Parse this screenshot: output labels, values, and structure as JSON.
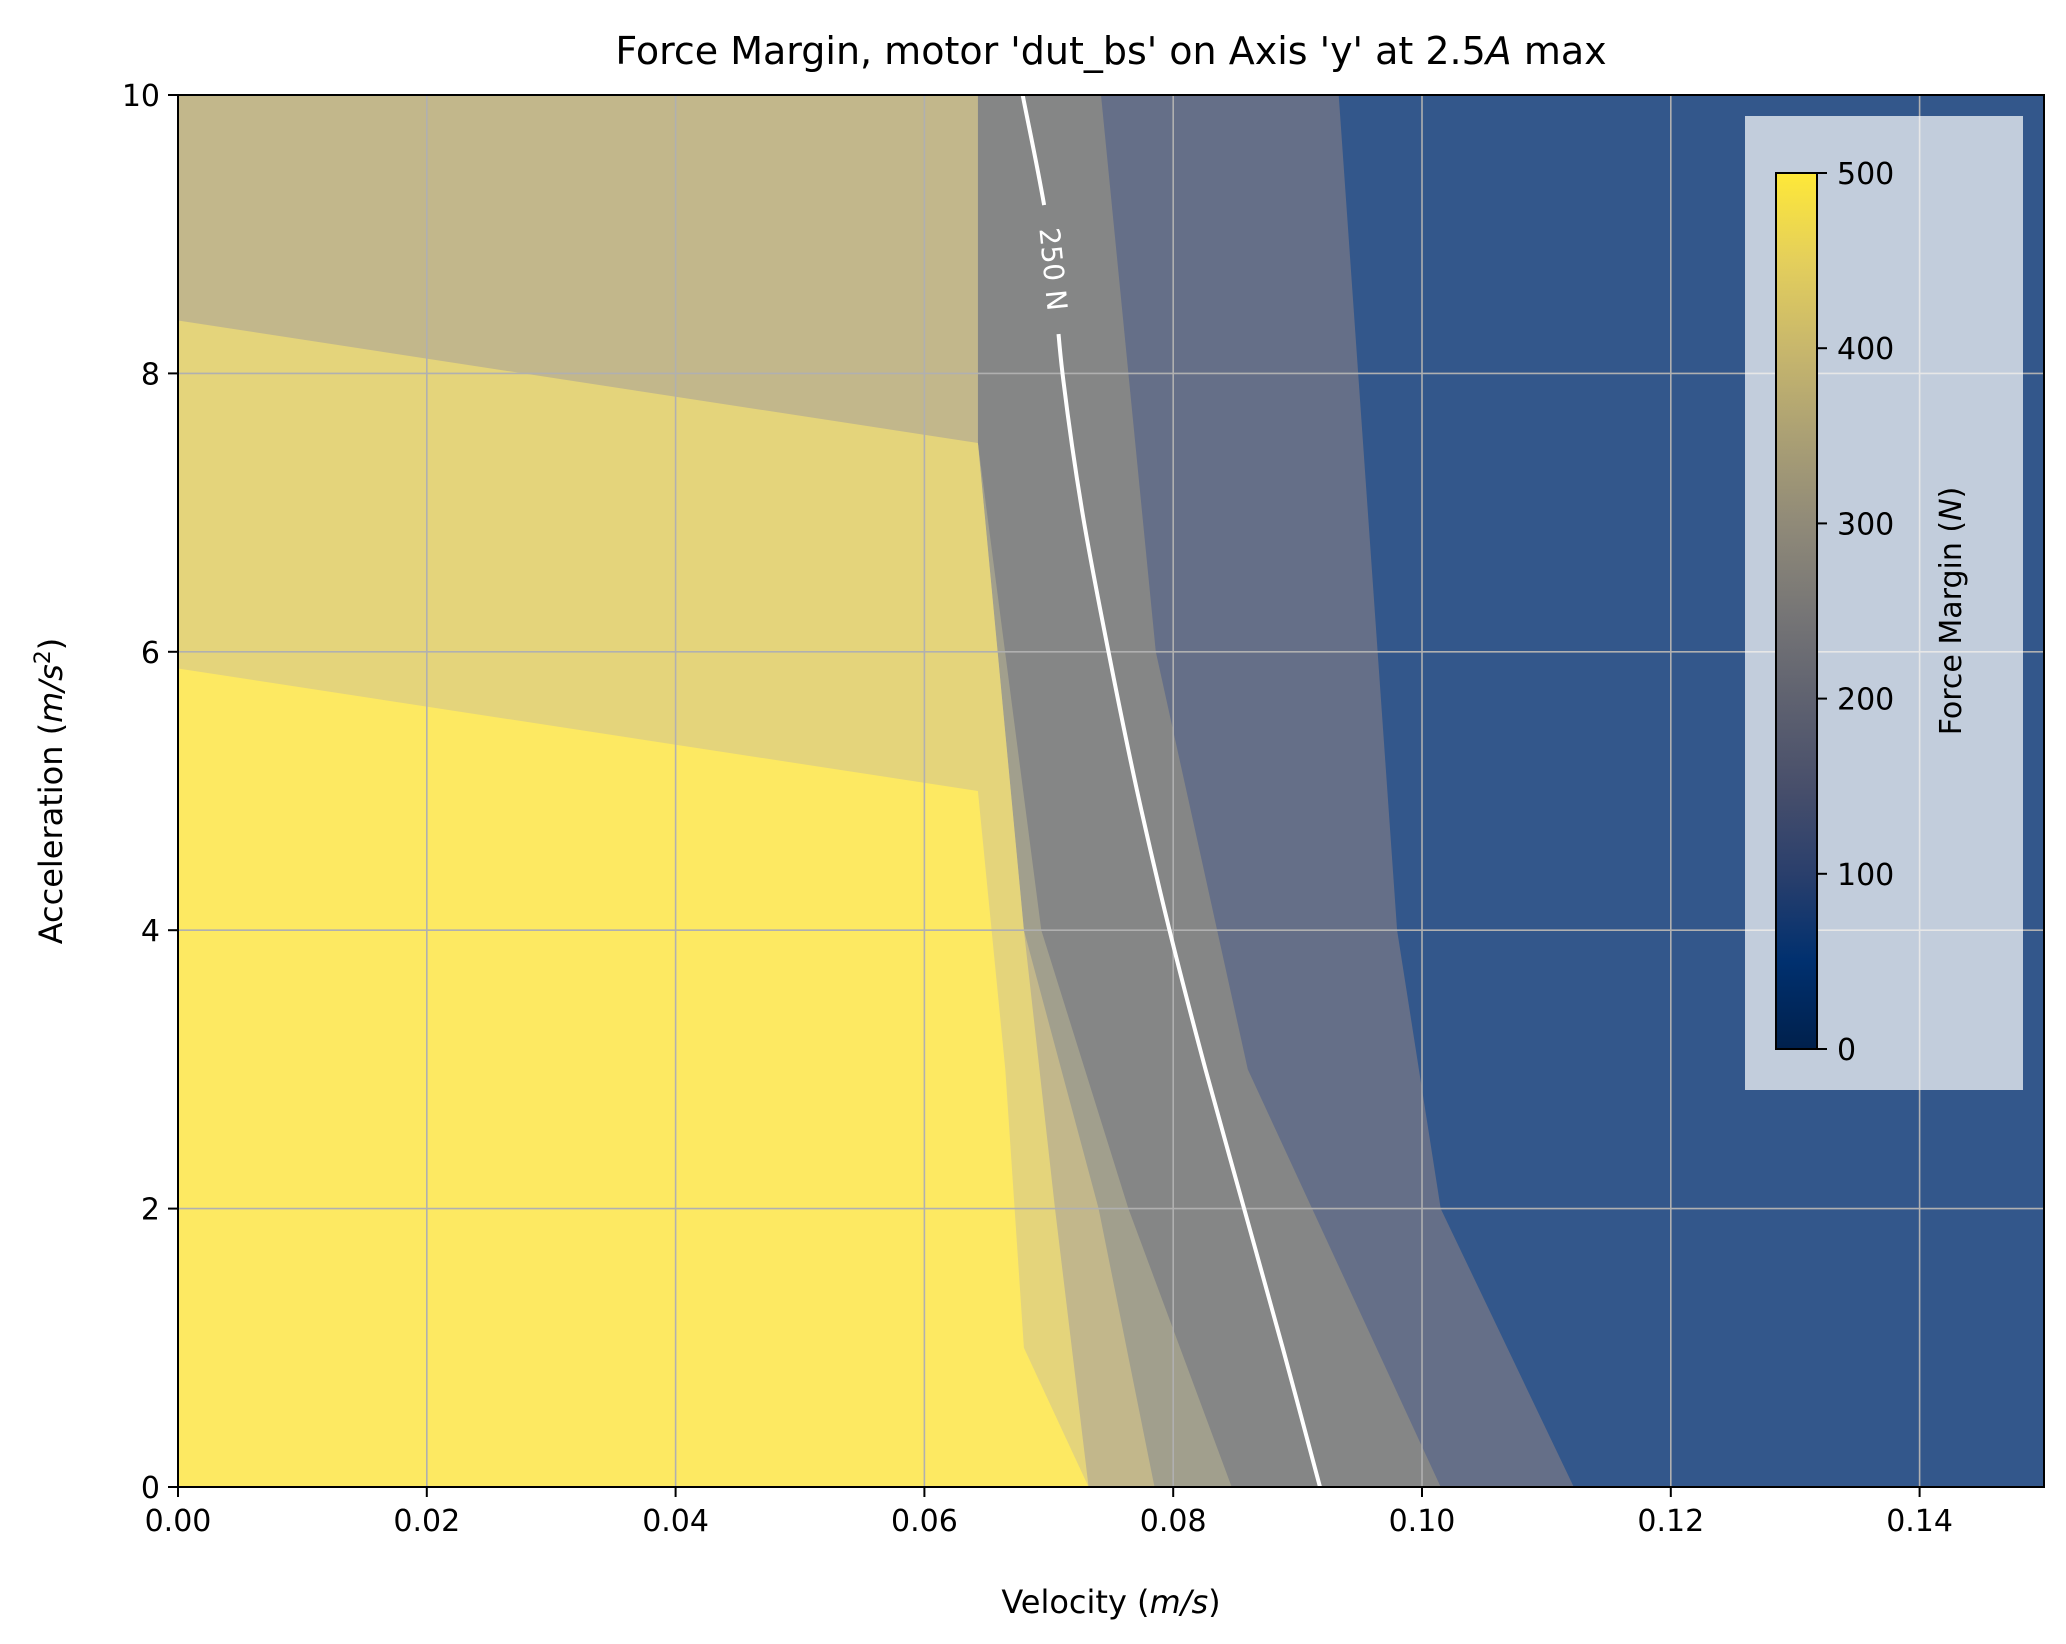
{
  "chart_data": {
    "type": "contourf",
    "title": "Force Margin, motor 'dut_bs' on Axis 'y' at 2.5A max",
    "title_parts": [
      {
        "text": "Force Margin, motor 'dut_bs' on Axis 'y' at 2.5",
        "italic": false
      },
      {
        "text": "A",
        "italic": true
      },
      {
        "text": " max",
        "italic": false
      }
    ],
    "xlabel_parts": [
      {
        "text": "Velocity (",
        "italic": false
      },
      {
        "text": "m/s",
        "italic": true
      },
      {
        "text": ")",
        "italic": false
      }
    ],
    "ylabel_parts": [
      {
        "text": "Acceleration (",
        "italic": false
      },
      {
        "text": "m/s",
        "italic": true
      },
      {
        "text": "2",
        "sup": true
      },
      {
        "text": ")",
        "italic": false
      }
    ],
    "xlim": [
      0.0,
      0.15
    ],
    "ylim": [
      0,
      10
    ],
    "xticks": [
      0.0,
      0.02,
      0.04,
      0.06,
      0.08,
      0.1,
      0.12,
      0.14
    ],
    "xtick_labels": [
      "0.00",
      "0.02",
      "0.04",
      "0.06",
      "0.08",
      "0.10",
      "0.12",
      "0.14"
    ],
    "yticks": [
      0,
      2,
      4,
      6,
      8,
      10
    ],
    "ytick_labels": [
      "0",
      "2",
      "4",
      "6",
      "8",
      "10"
    ],
    "grid": true,
    "colormap": "cividis",
    "colorbar": {
      "label_parts": [
        {
          "text": "Force Margin (",
          "italic": false
        },
        {
          "text": "N",
          "italic": true
        },
        {
          "text": ")",
          "italic": false
        }
      ],
      "range": [
        0,
        500
      ],
      "ticks": [
        0,
        100,
        200,
        300,
        400,
        500
      ],
      "tick_labels": [
        "0",
        "100",
        "200",
        "300",
        "400",
        "500"
      ],
      "placement": "inset upper right"
    },
    "regions": [
      {
        "level": "≤ 50 N",
        "color": "#33578b",
        "boundary": []
      },
      {
        "level": "50-150 N",
        "color": "#656f88",
        "boundary": [
          [
            0.0933,
            10
          ],
          [
            0.098,
            4
          ],
          [
            0.1015,
            2
          ],
          [
            0.1122,
            0
          ]
        ]
      },
      {
        "level": "150-250 N",
        "color": "#858686",
        "boundary": [
          [
            0.0742,
            10
          ],
          [
            0.0786,
            6
          ],
          [
            0.086,
            3
          ],
          [
            0.1015,
            0
          ]
        ]
      },
      {
        "level": "250-350 N",
        "color": "#a19f8d",
        "boundary": [
          [
            0.0643,
            10
          ],
          [
            0.0643,
            7.5
          ],
          [
            0.0694,
            4
          ],
          [
            0.0764,
            2
          ],
          [
            0.0847,
            0
          ]
        ]
      },
      {
        "level": "350-450 N",
        "color": "#c2b78b",
        "boundary": [
          [
            0.0,
            10
          ],
          [
            0.0643,
            10
          ],
          [
            0.0643,
            7.5
          ],
          [
            0.068,
            4
          ],
          [
            0.074,
            2
          ],
          [
            0.0785,
            0
          ]
        ]
      },
      {
        "level": "450-500 N",
        "color": "#e4d47b",
        "boundary": [
          [
            0.0,
            8.38
          ],
          [
            0.0643,
            7.5
          ],
          [
            0.068,
            4
          ],
          [
            0.0705,
            2
          ],
          [
            0.0732,
            0
          ]
        ]
      },
      {
        "level": "≥ 500 N",
        "color": "#fde962",
        "boundary": [
          [
            0.0,
            5.88
          ],
          [
            0.0643,
            5.0
          ],
          [
            0.0665,
            3
          ],
          [
            0.068,
            1
          ],
          [
            0.0732,
            0
          ]
        ]
      }
    ],
    "contour_line": {
      "level": 250,
      "label": "250 N",
      "color": "#ffffff",
      "points": [
        [
          0.0679,
          10.0
        ],
        [
          0.07,
          9.0
        ],
        [
          0.0711,
          8.0
        ],
        [
          0.0727,
          7.0
        ],
        [
          0.0748,
          6.0
        ],
        [
          0.0771,
          5.0
        ],
        [
          0.0797,
          4.0
        ],
        [
          0.0826,
          3.0
        ],
        [
          0.0857,
          2.0
        ],
        [
          0.0888,
          1.0
        ],
        [
          0.0918,
          0.0
        ]
      ]
    }
  }
}
